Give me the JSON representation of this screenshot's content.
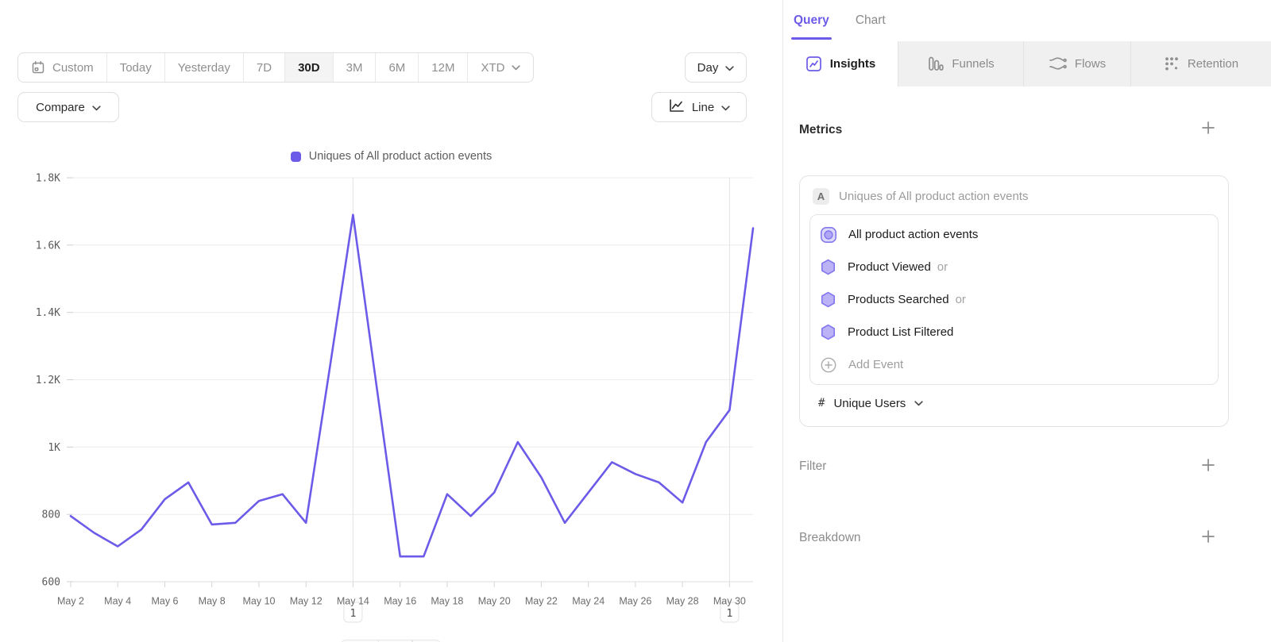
{
  "colors": {
    "accent": "#6C5BE8",
    "hex_fill": "#BCB3F6",
    "hex_stroke": "#8377EF",
    "grid": "#ECECEC",
    "annotation_line": "#E4E4E4"
  },
  "toolbar": {
    "ranges": [
      {
        "label": "Custom",
        "icon": "calendar-icon"
      },
      {
        "label": "Today"
      },
      {
        "label": "Yesterday"
      },
      {
        "label": "7D"
      },
      {
        "label": "30D",
        "active": true
      },
      {
        "label": "3M"
      },
      {
        "label": "6M"
      },
      {
        "label": "12M"
      },
      {
        "label": "XTD",
        "chevron": true
      }
    ],
    "interval_label": "Day",
    "compare_label": "Compare",
    "chart_type_label": "Line"
  },
  "chart_data": {
    "type": "line",
    "title": "",
    "legend_position": "top-center",
    "grid": true,
    "x": [
      "May 2",
      "May 3",
      "May 4",
      "May 5",
      "May 6",
      "May 7",
      "May 8",
      "May 9",
      "May 10",
      "May 11",
      "May 12",
      "May 13",
      "May 14",
      "May 15",
      "May 16",
      "May 17",
      "May 18",
      "May 19",
      "May 20",
      "May 21",
      "May 22",
      "May 23",
      "May 24",
      "May 25",
      "May 26",
      "May 27",
      "May 28",
      "May 29",
      "May 30",
      "May 31"
    ],
    "xtick_every": 2,
    "series": [
      {
        "name": "Uniques of All product action events",
        "color": "#6C5BE8",
        "values": [
          795,
          745,
          705,
          755,
          845,
          895,
          770,
          775,
          840,
          860,
          775,
          1230,
          1690,
          1180,
          675,
          675,
          860,
          795,
          865,
          1015,
          910,
          775,
          865,
          955,
          920,
          895,
          835,
          1015,
          1110,
          1650
        ]
      }
    ],
    "ylim": [
      600,
      1800
    ],
    "ytick_values": [
      600,
      800,
      1000,
      1200,
      1400,
      1600,
      1800
    ],
    "yticks": [
      "600",
      "800",
      "1K",
      "1.2K",
      "1.4K",
      "1.6K",
      "1.8K"
    ],
    "annotations": [
      {
        "label": "1",
        "x_index": 12,
        "date": "May 14"
      },
      {
        "label": "1",
        "x_index": 28,
        "date": "May 30"
      }
    ]
  },
  "panel": {
    "tabs_top": [
      "Query",
      "Chart"
    ],
    "report_tabs": [
      {
        "label": "Insights",
        "icon": "insights-icon",
        "active": true
      },
      {
        "label": "Funnels",
        "icon": "funnels-icon"
      },
      {
        "label": "Flows",
        "icon": "flows-icon"
      },
      {
        "label": "Retention",
        "icon": "retention-icon"
      }
    ],
    "metrics": {
      "title": "Metrics",
      "card": {
        "badge": "A",
        "title": "Uniques of All product action events",
        "events": [
          {
            "icon": "all-events-icon",
            "name": "All product action events"
          },
          {
            "icon": "hexagon-icon",
            "name": "Product Viewed",
            "suffix": "or"
          },
          {
            "icon": "hexagon-icon",
            "name": "Products Searched",
            "suffix": "or"
          },
          {
            "icon": "hexagon-icon",
            "name": "Product List Filtered"
          }
        ],
        "add_event_label": "Add Event",
        "measurement": "Unique Users"
      }
    },
    "sections": [
      {
        "label": "Filter"
      },
      {
        "label": "Breakdown"
      }
    ]
  }
}
